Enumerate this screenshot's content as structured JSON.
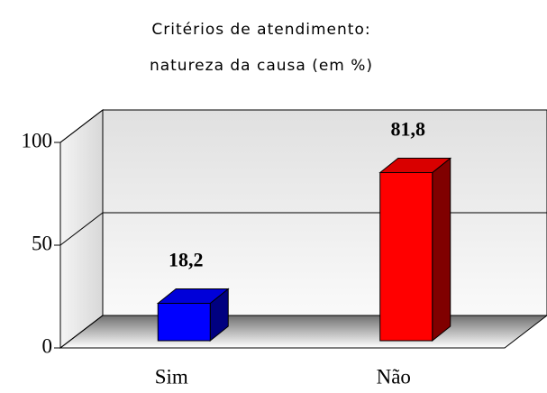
{
  "chart_data": {
    "type": "bar3d",
    "title": [
      "Critérios de atendimento:",
      "natureza da causa (em %)"
    ],
    "categories": [
      "Sim",
      "Não"
    ],
    "values": [
      18.2,
      81.8
    ],
    "value_labels": [
      "18,2",
      "81,8"
    ],
    "colors": [
      "#0000ff",
      "#ff0000"
    ],
    "ylim": [
      0,
      100
    ],
    "yticks": [
      0,
      50,
      100
    ],
    "grid": true
  }
}
